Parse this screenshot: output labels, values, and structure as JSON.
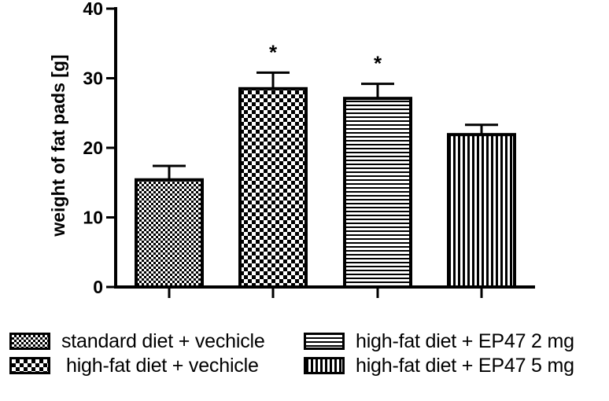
{
  "chart_data": {
    "type": "bar",
    "ylabel": "weight of fat pads [g]",
    "ylim": [
      0,
      40
    ],
    "yticks": [
      "0",
      "10",
      "20",
      "30",
      "40"
    ],
    "categories": [
      "standard diet + vechicle",
      "high-fat diet + vechicle",
      "high-fat diet + EP47 2 mg",
      "high-fat diet + EP47 5 mg"
    ],
    "values": [
      15.4,
      28.5,
      27.1,
      21.9
    ],
    "errors": [
      2.0,
      2.3,
      2.1,
      1.4
    ],
    "annotations": [
      "",
      "*",
      "*",
      ""
    ],
    "patterns": [
      "fine-checker",
      "checker",
      "horizontal-lines",
      "vertical-lines"
    ],
    "legend_position": "bottom"
  }
}
